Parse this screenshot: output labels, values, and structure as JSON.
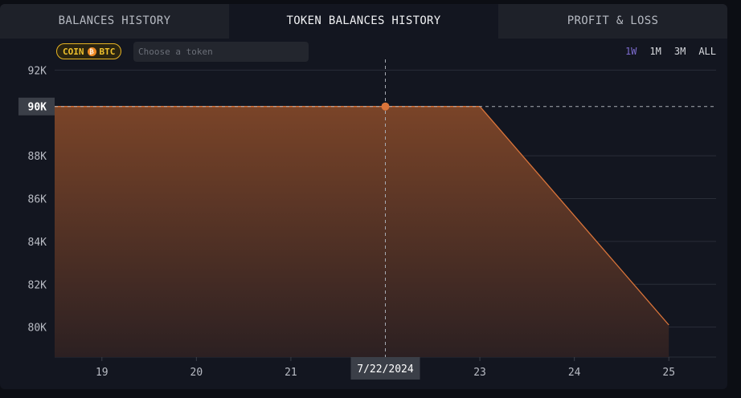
{
  "tabs": [
    {
      "label": "BALANCES HISTORY",
      "active": false
    },
    {
      "label": "TOKEN BALANCES HISTORY",
      "active": true
    },
    {
      "label": "PROFIT & LOSS",
      "active": false
    }
  ],
  "token_badge": {
    "coin_label": "COIN",
    "token_label": "BTC",
    "icon": "bitcoin-icon"
  },
  "token_search": {
    "placeholder": "Choose a token",
    "value": ""
  },
  "ranges": [
    {
      "label": "1W",
      "selected": true
    },
    {
      "label": "1M",
      "selected": false
    },
    {
      "label": "3M",
      "selected": false
    },
    {
      "label": "ALL",
      "selected": false
    }
  ],
  "colors": {
    "accent": "#d9743a",
    "area_top": "#7a4428",
    "area_bottom": "#2c2022",
    "selected_range": "#7d6ccf"
  },
  "crosshair": {
    "x_label": "7/22/2024",
    "y_label": "90K",
    "x": 22,
    "y": 90300
  },
  "chart_data": {
    "type": "area",
    "x": [
      18.5,
      22,
      23,
      25
    ],
    "y": [
      90300,
      90300,
      90300,
      80100
    ],
    "x_ticks": [
      19,
      20,
      21,
      22,
      23,
      24,
      25
    ],
    "x_tick_labels": [
      "19",
      "20",
      "21",
      "",
      "23",
      "24",
      "25"
    ],
    "y_ticks": [
      80000,
      82000,
      84000,
      86000,
      88000,
      92000
    ],
    "y_tick_labels": [
      "80K",
      "82K",
      "84K",
      "86K",
      "88K",
      "92K"
    ],
    "xlim": [
      18.5,
      25.5
    ],
    "ylim": [
      78600,
      92500
    ],
    "grid": true,
    "xlabel": "",
    "ylabel": ""
  }
}
